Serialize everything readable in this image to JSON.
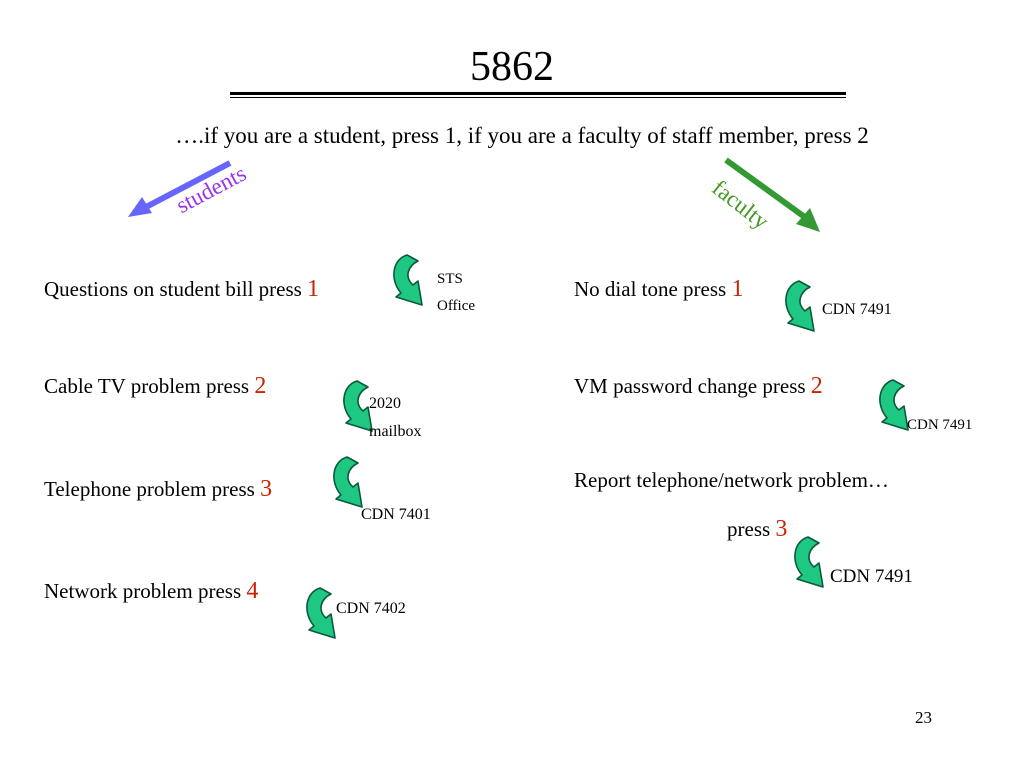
{
  "slide": {
    "title": "5862",
    "subtitle": "….if you are a student, press 1, if you are a faculty of staff member, press 2",
    "page_number": "23"
  },
  "students": {
    "label": "students",
    "color": "#9933ee",
    "arrow_color": "#6666ff",
    "options": [
      {
        "text": "Questions on student bill press ",
        "key": "1",
        "destination_line1": "STS",
        "destination_line2": "Office"
      },
      {
        "text": "Cable TV problem press ",
        "key": "2",
        "destination_line1": "2020",
        "destination_line2": "mailbox"
      },
      {
        "text": "Telephone problem press ",
        "key": "3",
        "destination": "CDN 7401"
      },
      {
        "text": "Network problem press ",
        "key": "4",
        "destination": "CDN 7402"
      }
    ]
  },
  "faculty": {
    "label": "faculty",
    "color": "#449922",
    "arrow_color": "#339933",
    "options": [
      {
        "text": "No dial tone press ",
        "key": "1",
        "destination": "CDN 7491"
      },
      {
        "text": "VM password change press ",
        "key": "2",
        "destination": "CDN 7491"
      },
      {
        "text": "Report telephone/network problem…",
        "text2": "press ",
        "key": "3",
        "destination": "CDN 7491"
      }
    ]
  },
  "colors": {
    "key_number": "#cc2200",
    "curl_arrow_fill": "#1fc882",
    "curl_arrow_stroke": "#0a5a3a"
  }
}
